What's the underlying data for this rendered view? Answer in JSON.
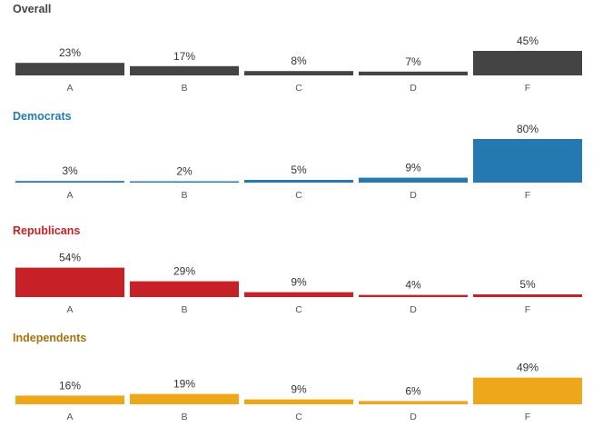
{
  "chart_data": [
    {
      "type": "bar",
      "title": "Overall",
      "color": "#444444",
      "categories": [
        "A",
        "B",
        "C",
        "D",
        "F"
      ],
      "values": [
        23,
        17,
        8,
        7,
        45
      ],
      "value_labels": [
        "23%",
        "17%",
        "8%",
        "7%",
        "45%"
      ],
      "ylim": [
        0,
        100
      ]
    },
    {
      "type": "bar",
      "title": "Democrats",
      "color": "#2479b1",
      "categories": [
        "A",
        "B",
        "C",
        "D",
        "F"
      ],
      "values": [
        3,
        2,
        5,
        9,
        80
      ],
      "value_labels": [
        "3%",
        "2%",
        "5%",
        "9%",
        "80%"
      ],
      "ylim": [
        0,
        100
      ]
    },
    {
      "type": "bar",
      "title": "Republicans",
      "color": "#c62126",
      "categories": [
        "A",
        "B",
        "C",
        "D",
        "F"
      ],
      "values": [
        54,
        29,
        9,
        4,
        5
      ],
      "value_labels": [
        "54%",
        "29%",
        "9%",
        "4%",
        "5%"
      ],
      "ylim": [
        0,
        100
      ]
    },
    {
      "type": "bar",
      "title": "Independents",
      "color": "#eea71b",
      "title_color": "#a8720c",
      "categories": [
        "A",
        "B",
        "C",
        "D",
        "F"
      ],
      "values": [
        16,
        19,
        9,
        6,
        49
      ],
      "value_labels": [
        "16%",
        "19%",
        "9%",
        "6%",
        "49%"
      ],
      "ylim": [
        0,
        100
      ]
    }
  ]
}
